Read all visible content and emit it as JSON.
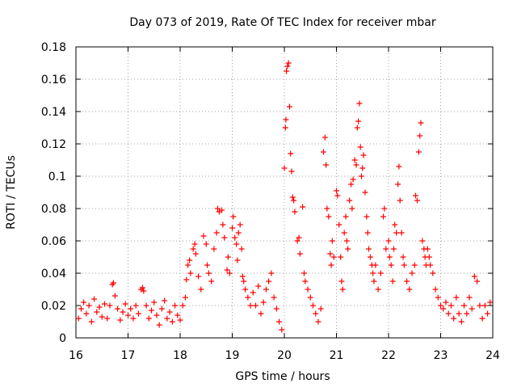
{
  "chart_data": {
    "type": "scatter",
    "title": "Day 073 of 2019, Rate Of TEC Index for receiver mbar",
    "xlabel": "GPS time / hours",
    "ylabel": "ROTI / TECUs",
    "xlim": [
      16,
      24
    ],
    "ylim": [
      0,
      0.18
    ],
    "xticks": [
      16,
      17,
      18,
      19,
      20,
      21,
      22,
      23,
      24
    ],
    "xtick_labels": [
      "16",
      "17",
      "18",
      "19",
      "20",
      "21",
      "22",
      "23",
      "24"
    ],
    "yticks": [
      0,
      0.02,
      0.04,
      0.06,
      0.08,
      0.1,
      0.12,
      0.14,
      0.16,
      0.18
    ],
    "ytick_labels": [
      "0",
      "0.02",
      "0.04",
      "0.06",
      "0.08",
      "0.1",
      "0.12",
      "0.14",
      "0.16",
      "0.18"
    ],
    "grid": true,
    "marker": "+",
    "marker_color": "#ff0000",
    "series": [
      {
        "name": "ROTI",
        "points": [
          [
            16.05,
            0.012
          ],
          [
            16.1,
            0.018
          ],
          [
            16.15,
            0.022
          ],
          [
            16.2,
            0.015
          ],
          [
            16.25,
            0.02
          ],
          [
            16.3,
            0.01
          ],
          [
            16.35,
            0.024
          ],
          [
            16.4,
            0.016
          ],
          [
            16.45,
            0.019
          ],
          [
            16.5,
            0.013
          ],
          [
            16.55,
            0.021
          ],
          [
            16.6,
            0.012
          ],
          [
            16.65,
            0.02
          ],
          [
            16.7,
            0.033
          ],
          [
            16.72,
            0.034
          ],
          [
            16.75,
            0.026
          ],
          [
            16.8,
            0.018
          ],
          [
            16.85,
            0.011
          ],
          [
            16.9,
            0.016
          ],
          [
            16.95,
            0.021
          ],
          [
            17.0,
            0.014
          ],
          [
            17.05,
            0.018
          ],
          [
            17.1,
            0.012
          ],
          [
            17.15,
            0.02
          ],
          [
            17.2,
            0.015
          ],
          [
            17.25,
            0.03
          ],
          [
            17.28,
            0.031
          ],
          [
            17.3,
            0.029
          ],
          [
            17.35,
            0.02
          ],
          [
            17.4,
            0.012
          ],
          [
            17.45,
            0.017
          ],
          [
            17.5,
            0.022
          ],
          [
            17.55,
            0.014
          ],
          [
            17.6,
            0.008
          ],
          [
            17.65,
            0.018
          ],
          [
            17.7,
            0.023
          ],
          [
            17.75,
            0.012
          ],
          [
            17.8,
            0.016
          ],
          [
            17.85,
            0.01
          ],
          [
            17.9,
            0.02
          ],
          [
            17.95,
            0.014
          ],
          [
            18.0,
            0.011
          ],
          [
            18.05,
            0.02
          ],
          [
            18.1,
            0.025
          ],
          [
            18.12,
            0.036
          ],
          [
            18.15,
            0.045
          ],
          [
            18.18,
            0.048
          ],
          [
            18.2,
            0.04
          ],
          [
            18.25,
            0.055
          ],
          [
            18.28,
            0.058
          ],
          [
            18.3,
            0.052
          ],
          [
            18.35,
            0.038
          ],
          [
            18.4,
            0.03
          ],
          [
            18.45,
            0.063
          ],
          [
            18.5,
            0.058
          ],
          [
            18.52,
            0.045
          ],
          [
            18.55,
            0.04
          ],
          [
            18.6,
            0.035
          ],
          [
            18.65,
            0.055
          ],
          [
            18.7,
            0.065
          ],
          [
            18.72,
            0.08
          ],
          [
            18.75,
            0.078
          ],
          [
            18.8,
            0.079
          ],
          [
            18.82,
            0.07
          ],
          [
            18.85,
            0.062
          ],
          [
            18.9,
            0.042
          ],
          [
            18.92,
            0.05
          ],
          [
            18.95,
            0.04
          ],
          [
            19.0,
            0.068
          ],
          [
            19.02,
            0.075
          ],
          [
            19.05,
            0.062
          ],
          [
            19.08,
            0.058
          ],
          [
            19.1,
            0.048
          ],
          [
            19.12,
            0.065
          ],
          [
            19.15,
            0.07
          ],
          [
            19.18,
            0.055
          ],
          [
            19.2,
            0.038
          ],
          [
            19.22,
            0.035
          ],
          [
            19.25,
            0.03
          ],
          [
            19.3,
            0.025
          ],
          [
            19.35,
            0.02
          ],
          [
            19.4,
            0.028
          ],
          [
            19.45,
            0.02
          ],
          [
            19.5,
            0.032
          ],
          [
            19.55,
            0.015
          ],
          [
            19.6,
            0.022
          ],
          [
            19.65,
            0.03
          ],
          [
            19.7,
            0.035
          ],
          [
            19.75,
            0.04
          ],
          [
            19.8,
            0.025
          ],
          [
            19.85,
            0.018
          ],
          [
            19.9,
            0.01
          ],
          [
            19.95,
            0.005
          ],
          [
            20.0,
            0.105
          ],
          [
            20.02,
            0.13
          ],
          [
            20.03,
            0.135
          ],
          [
            20.04,
            0.165
          ],
          [
            20.06,
            0.168
          ],
          [
            20.08,
            0.17
          ],
          [
            20.1,
            0.143
          ],
          [
            20.12,
            0.114
          ],
          [
            20.14,
            0.103
          ],
          [
            20.16,
            0.087
          ],
          [
            20.18,
            0.085
          ],
          [
            20.2,
            0.078
          ],
          [
            20.25,
            0.06
          ],
          [
            20.28,
            0.062
          ],
          [
            20.3,
            0.052
          ],
          [
            20.35,
            0.081
          ],
          [
            20.38,
            0.04
          ],
          [
            20.4,
            0.035
          ],
          [
            20.45,
            0.03
          ],
          [
            20.5,
            0.025
          ],
          [
            20.55,
            0.02
          ],
          [
            20.6,
            0.015
          ],
          [
            20.65,
            0.01
          ],
          [
            20.7,
            0.018
          ],
          [
            20.75,
            0.115
          ],
          [
            20.78,
            0.124
          ],
          [
            20.8,
            0.107
          ],
          [
            20.82,
            0.08
          ],
          [
            20.85,
            0.075
          ],
          [
            20.88,
            0.052
          ],
          [
            20.9,
            0.045
          ],
          [
            20.92,
            0.06
          ],
          [
            20.95,
            0.05
          ],
          [
            21.0,
            0.091
          ],
          [
            21.02,
            0.088
          ],
          [
            21.05,
            0.07
          ],
          [
            21.08,
            0.05
          ],
          [
            21.1,
            0.035
          ],
          [
            21.12,
            0.03
          ],
          [
            21.15,
            0.065
          ],
          [
            21.18,
            0.075
          ],
          [
            21.2,
            0.06
          ],
          [
            21.22,
            0.055
          ],
          [
            21.25,
            0.085
          ],
          [
            21.28,
            0.095
          ],
          [
            21.3,
            0.08
          ],
          [
            21.32,
            0.098
          ],
          [
            21.35,
            0.11
          ],
          [
            21.38,
            0.107
          ],
          [
            21.4,
            0.13
          ],
          [
            21.42,
            0.134
          ],
          [
            21.44,
            0.145
          ],
          [
            21.46,
            0.118
          ],
          [
            21.48,
            0.1
          ],
          [
            21.5,
            0.105
          ],
          [
            21.52,
            0.113
          ],
          [
            21.55,
            0.09
          ],
          [
            21.58,
            0.075
          ],
          [
            21.6,
            0.065
          ],
          [
            21.62,
            0.055
          ],
          [
            21.65,
            0.05
          ],
          [
            21.68,
            0.045
          ],
          [
            21.7,
            0.04
          ],
          [
            21.72,
            0.035
          ],
          [
            21.75,
            0.045
          ],
          [
            21.8,
            0.03
          ],
          [
            21.85,
            0.04
          ],
          [
            21.9,
            0.075
          ],
          [
            21.92,
            0.08
          ],
          [
            21.95,
            0.055
          ],
          [
            22.0,
            0.06
          ],
          [
            22.02,
            0.05
          ],
          [
            22.05,
            0.045
          ],
          [
            22.08,
            0.035
          ],
          [
            22.1,
            0.055
          ],
          [
            22.12,
            0.07
          ],
          [
            22.15,
            0.065
          ],
          [
            22.18,
            0.095
          ],
          [
            22.2,
            0.106
          ],
          [
            22.22,
            0.085
          ],
          [
            22.25,
            0.065
          ],
          [
            22.28,
            0.05
          ],
          [
            22.3,
            0.045
          ],
          [
            22.35,
            0.035
          ],
          [
            22.4,
            0.03
          ],
          [
            22.45,
            0.04
          ],
          [
            22.5,
            0.045
          ],
          [
            22.52,
            0.088
          ],
          [
            22.55,
            0.085
          ],
          [
            22.58,
            0.115
          ],
          [
            22.6,
            0.125
          ],
          [
            22.62,
            0.133
          ],
          [
            22.65,
            0.06
          ],
          [
            22.68,
            0.055
          ],
          [
            22.7,
            0.05
          ],
          [
            22.72,
            0.045
          ],
          [
            22.75,
            0.055
          ],
          [
            22.78,
            0.05
          ],
          [
            22.8,
            0.045
          ],
          [
            22.85,
            0.04
          ],
          [
            22.9,
            0.03
          ],
          [
            22.95,
            0.025
          ],
          [
            23.0,
            0.02
          ],
          [
            23.05,
            0.018
          ],
          [
            23.1,
            0.022
          ],
          [
            23.15,
            0.015
          ],
          [
            23.2,
            0.02
          ],
          [
            23.25,
            0.012
          ],
          [
            23.3,
            0.025
          ],
          [
            23.35,
            0.015
          ],
          [
            23.4,
            0.01
          ],
          [
            23.45,
            0.02
          ],
          [
            23.5,
            0.015
          ],
          [
            23.55,
            0.025
          ],
          [
            23.6,
            0.018
          ],
          [
            23.65,
            0.038
          ],
          [
            23.7,
            0.035
          ],
          [
            23.75,
            0.02
          ],
          [
            23.8,
            0.012
          ],
          [
            23.85,
            0.02
          ],
          [
            23.9,
            0.015
          ],
          [
            23.95,
            0.022
          ]
        ]
      }
    ]
  }
}
